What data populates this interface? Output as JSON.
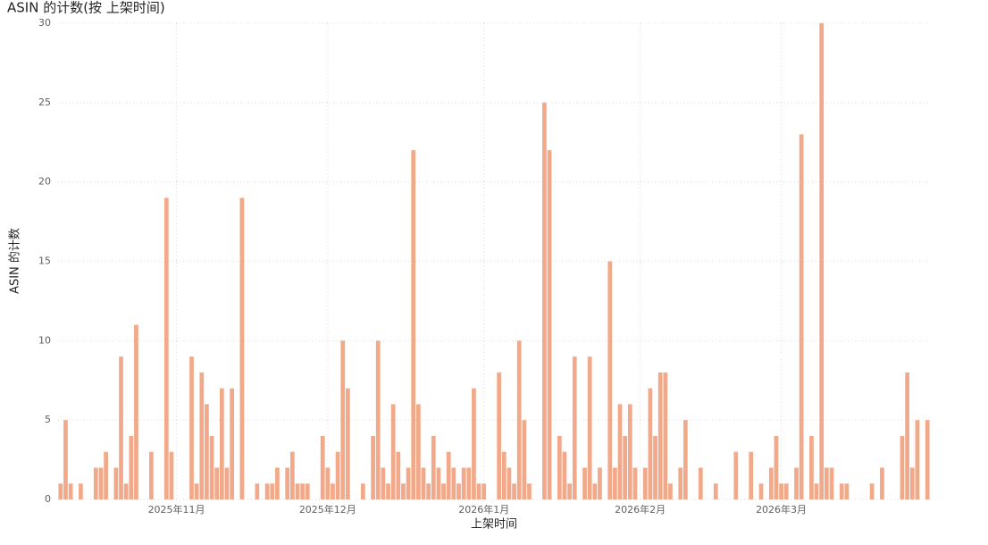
{
  "chart_data": {
    "type": "bar",
    "title": "ASIN 的计数(按 上架时间)",
    "x_label": "上架时间",
    "y_label": "ASIN 的计数",
    "color": "#f2a98a",
    "grid": true,
    "ylim": [
      0,
      30
    ],
    "yticks": [
      0,
      5,
      10,
      15,
      20,
      25,
      30
    ],
    "categories": [
      null,
      null,
      null,
      null,
      null,
      null,
      null,
      null,
      null,
      null,
      null,
      null,
      null,
      null,
      null,
      null,
      null,
      null,
      null,
      null,
      null,
      null,
      null,
      "2025年11月",
      null,
      null,
      null,
      null,
      null,
      null,
      null,
      null,
      null,
      null,
      null,
      null,
      null,
      null,
      null,
      null,
      null,
      null,
      null,
      null,
      null,
      null,
      null,
      null,
      null,
      null,
      null,
      null,
      null,
      "2025年12月",
      null,
      null,
      null,
      null,
      null,
      null,
      null,
      null,
      null,
      null,
      null,
      null,
      null,
      null,
      null,
      null,
      null,
      null,
      null,
      null,
      null,
      null,
      null,
      null,
      null,
      null,
      null,
      null,
      null,
      null,
      "2026年1月",
      null,
      null,
      null,
      null,
      null,
      null,
      null,
      null,
      null,
      null,
      null,
      null,
      null,
      null,
      null,
      null,
      null,
      null,
      null,
      null,
      null,
      null,
      null,
      null,
      null,
      null,
      null,
      null,
      null,
      null,
      "2026年2月",
      null,
      null,
      null,
      null,
      null,
      null,
      null,
      null,
      null,
      null,
      null,
      null,
      null,
      null,
      null,
      null,
      null,
      null,
      null,
      null,
      null,
      null,
      null,
      null,
      null,
      null,
      null,
      "2026年3月",
      null,
      null,
      null,
      null,
      null,
      null,
      null,
      null,
      null,
      null,
      null,
      null,
      null,
      null,
      null,
      null,
      null,
      null,
      null,
      null,
      null,
      null,
      null,
      null,
      null,
      null,
      null,
      null,
      null
    ],
    "values": [
      1,
      5,
      1,
      null,
      1,
      null,
      null,
      2,
      2,
      3,
      null,
      2,
      9,
      1,
      4,
      11,
      null,
      null,
      3,
      null,
      null,
      19,
      3,
      null,
      null,
      null,
      9,
      1,
      8,
      6,
      4,
      2,
      7,
      2,
      7,
      null,
      19,
      null,
      null,
      1,
      null,
      1,
      1,
      2,
      null,
      2,
      3,
      1,
      1,
      1,
      null,
      null,
      4,
      2,
      1,
      3,
      10,
      7,
      null,
      null,
      1,
      null,
      4,
      10,
      2,
      1,
      6,
      3,
      1,
      2,
      22,
      6,
      2,
      1,
      4,
      2,
      1,
      3,
      2,
      1,
      2,
      2,
      7,
      1,
      1,
      null,
      null,
      8,
      3,
      2,
      1,
      10,
      5,
      1,
      null,
      null,
      25,
      22,
      null,
      4,
      3,
      1,
      9,
      null,
      2,
      9,
      1,
      2,
      null,
      15,
      2,
      6,
      4,
      6,
      2,
      null,
      2,
      7,
      4,
      8,
      8,
      1,
      null,
      2,
      5,
      null,
      null,
      2,
      null,
      null,
      1,
      null,
      null,
      null,
      3,
      null,
      null,
      3,
      null,
      1,
      null,
      2,
      4,
      1,
      1,
      null,
      2,
      23,
      null,
      4,
      1,
      30,
      2,
      2,
      null,
      1,
      1,
      null,
      null,
      null,
      null,
      1,
      null,
      2,
      null,
      null,
      null,
      4,
      8,
      2,
      5,
      null,
      5
    ]
  }
}
